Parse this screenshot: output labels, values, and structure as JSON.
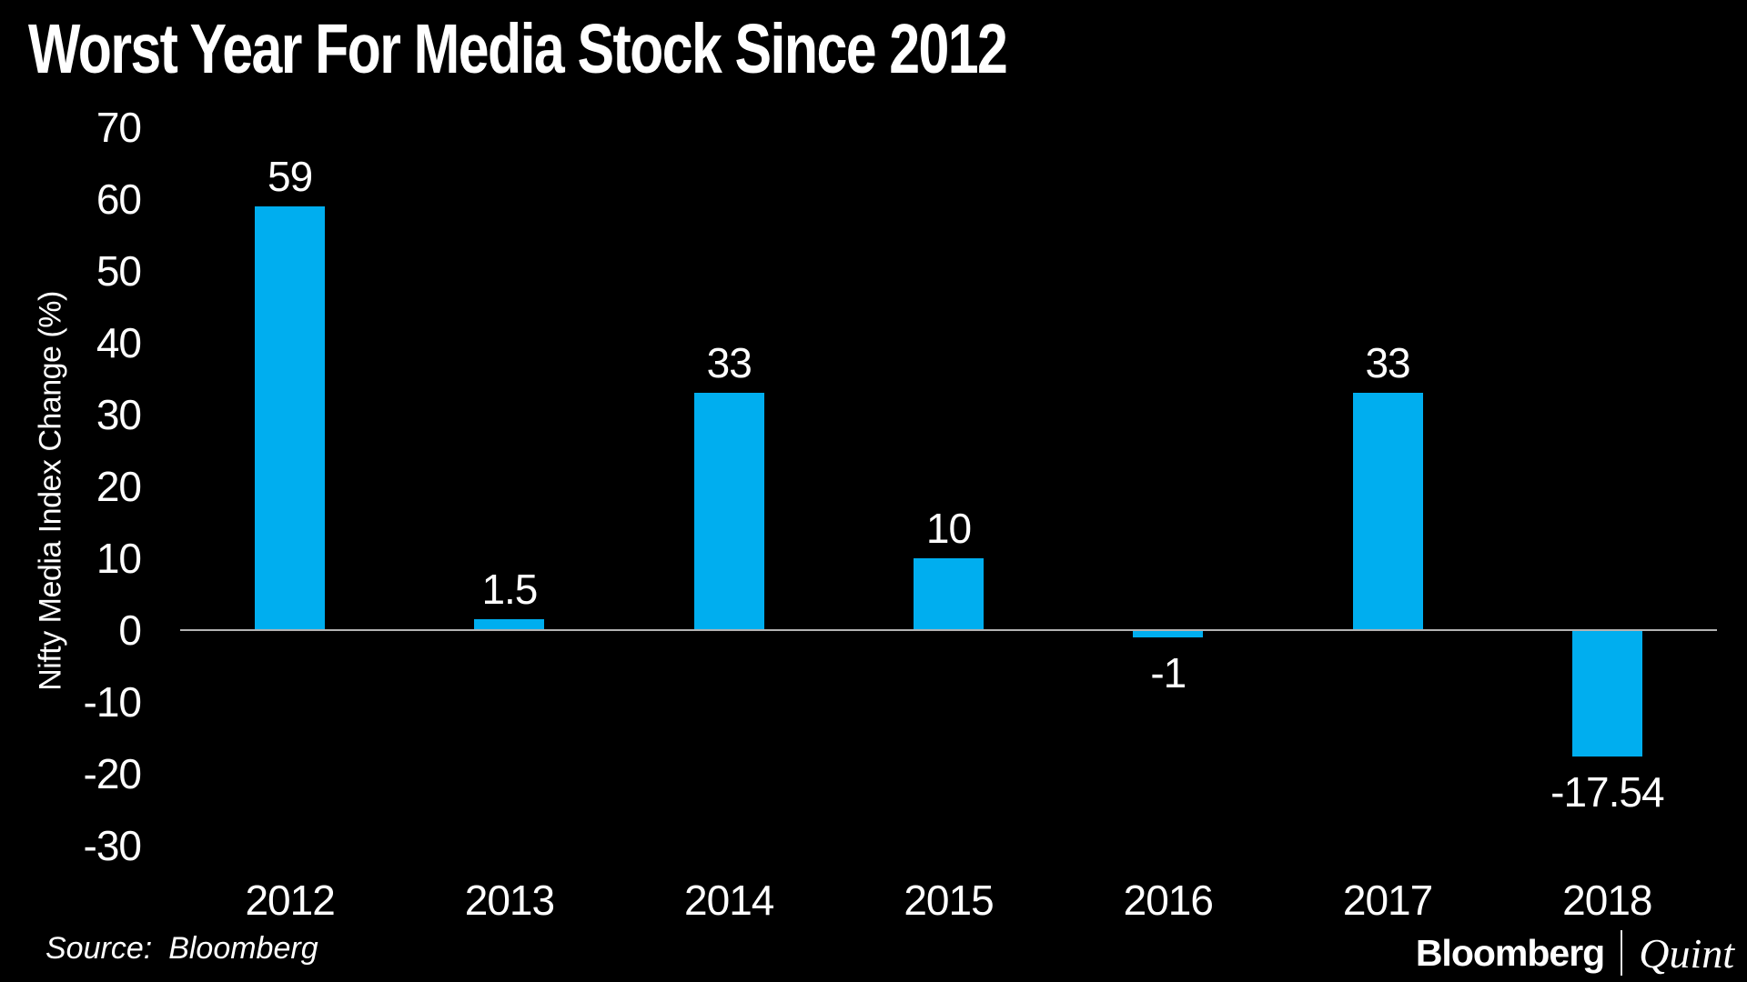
{
  "title": "Worst Year For Media Stock Since 2012",
  "source": {
    "label": "Source:",
    "value": "Bloomberg"
  },
  "branding": {
    "primary": "Bloomberg",
    "secondary": "Quint"
  },
  "chart_data": {
    "type": "bar",
    "title": "Worst Year For Media Stock Since 2012",
    "categories": [
      "2012",
      "2013",
      "2014",
      "2015",
      "2016",
      "2017",
      "2018"
    ],
    "values": [
      59,
      1.5,
      33,
      10,
      -1,
      33,
      -17.54
    ],
    "value_labels": [
      "59",
      "1.5",
      "33",
      "10",
      "-1",
      "33",
      "-17.54"
    ],
    "xlabel": "",
    "ylabel": "Nifty Media Index Change (%)",
    "yticks": [
      70,
      60,
      50,
      40,
      30,
      20,
      10,
      0,
      -10,
      -20,
      -30
    ],
    "ylim": [
      -30,
      70
    ],
    "grid": false,
    "legend": false,
    "background_color": "#000000",
    "bar_color": "#00AEEF",
    "text_color": "#FFFFFF",
    "zero_line_color": "#B3B3B3"
  }
}
